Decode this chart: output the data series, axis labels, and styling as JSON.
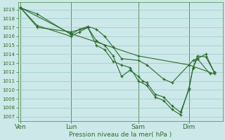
{
  "xlabel": "Pression niveau de la mer( hPa )",
  "bg_color": "#cce8e8",
  "grid_color": "#99cccc",
  "line_color": "#2d6b2d",
  "ylim": [
    1006.5,
    1019.8
  ],
  "yticks": [
    1007,
    1008,
    1009,
    1010,
    1011,
    1012,
    1013,
    1014,
    1015,
    1016,
    1017,
    1018,
    1019
  ],
  "day_labels": [
    "Ven",
    "Lun",
    "Sam",
    "Dim"
  ],
  "day_positions": [
    0,
    6,
    14,
    20
  ],
  "xlim": [
    -0.3,
    24
  ],
  "series1_x": [
    0,
    2,
    6,
    7,
    8,
    9,
    10,
    11,
    12,
    14,
    15,
    17,
    18,
    20,
    20.5,
    21,
    22.5
  ],
  "series1_y": [
    1019.2,
    1018.5,
    1016.2,
    1016.8,
    1017.1,
    1016.8,
    1016.0,
    1014.8,
    1013.5,
    1013.3,
    1012.8,
    1011.2,
    1010.8,
    1012.8,
    1013.3,
    1013.5,
    1011.8
  ],
  "series2_x": [
    0,
    2,
    6,
    7,
    8,
    9,
    10,
    11,
    12,
    13,
    14,
    14.5,
    15,
    16,
    17,
    18,
    19,
    20,
    20.5,
    21,
    22,
    23
  ],
  "series2_y": [
    1019.2,
    1017.2,
    1016.0,
    1016.5,
    1017.0,
    1015.5,
    1015.0,
    1013.8,
    1011.5,
    1012.2,
    1011.5,
    1011.0,
    1010.8,
    1009.5,
    1009.2,
    1008.2,
    1007.5,
    1010.0,
    1012.5,
    1013.5,
    1014.0,
    1012.0
  ],
  "series3_x": [
    0,
    2,
    6,
    8,
    9,
    10,
    11,
    12,
    13,
    14,
    15,
    16,
    17,
    18,
    19,
    20,
    20.5,
    21,
    22,
    23
  ],
  "series3_y": [
    1019.2,
    1017.0,
    1016.5,
    1017.0,
    1015.0,
    1014.5,
    1013.2,
    1012.8,
    1012.5,
    1011.0,
    1010.5,
    1009.2,
    1008.8,
    1007.8,
    1007.2,
    1010.2,
    1012.5,
    1013.8,
    1013.7,
    1012.0
  ],
  "series4_x": [
    0,
    6,
    14,
    20,
    23
  ],
  "series4_y": [
    1019.2,
    1016.3,
    1013.8,
    1012.8,
    1011.8
  ]
}
